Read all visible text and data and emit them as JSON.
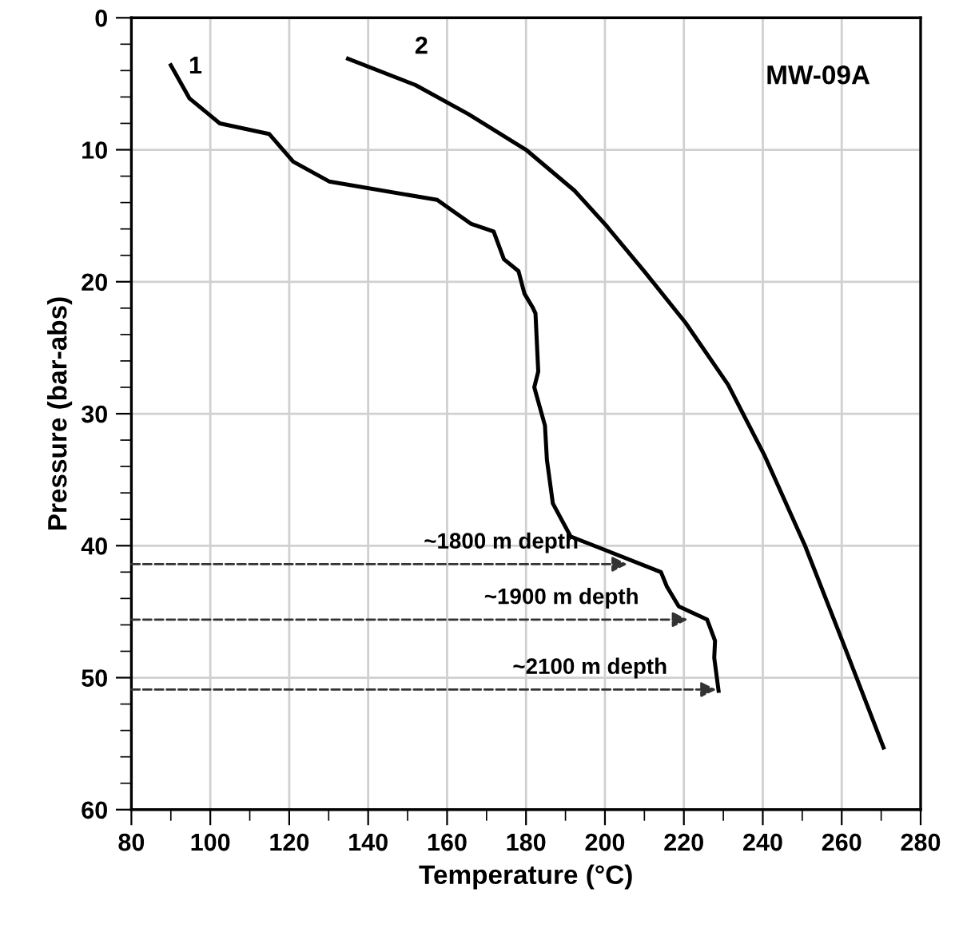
{
  "chart_data": {
    "type": "line",
    "xlabel": "Temperature (°C)",
    "ylabel": "Pressure (bar-abs)",
    "xlim": [
      80,
      280
    ],
    "ylim": [
      60,
      0
    ],
    "xticks": [
      80,
      {
        "value": 90,
        "label": null
      },
      100,
      {
        "value": 110,
        "label": null
      },
      120,
      {
        "value": 130,
        "label": null
      },
      140,
      {
        "value": 150,
        "label": null
      },
      160,
      {
        "value": 170,
        "label": null
      },
      180,
      {
        "value": 190,
        "label": null
      },
      200,
      {
        "value": 210,
        "label": null
      },
      220,
      {
        "value": 230,
        "label": null
      },
      240,
      {
        "value": 250,
        "label": null
      },
      260,
      {
        "value": 270,
        "label": null
      },
      280
    ],
    "yticks": [
      0,
      {
        "value": 2,
        "label": null
      },
      {
        "value": 4,
        "label": null
      },
      {
        "value": 6,
        "label": null
      },
      {
        "value": 8,
        "label": null
      },
      10,
      {
        "value": 12,
        "label": null
      },
      {
        "value": 14,
        "label": null
      },
      {
        "value": 16,
        "label": null
      },
      {
        "value": 18,
        "label": null
      },
      20,
      {
        "value": 22,
        "label": null
      },
      {
        "value": 24,
        "label": null
      },
      {
        "value": 26,
        "label": null
      },
      {
        "value": 28,
        "label": null
      },
      30,
      {
        "value": 32,
        "label": null
      },
      {
        "value": 34,
        "label": null
      },
      {
        "value": 36,
        "label": null
      },
      {
        "value": 38,
        "label": null
      },
      40,
      {
        "value": 42,
        "label": null
      },
      {
        "value": 44,
        "label": null
      },
      {
        "value": 46,
        "label": null
      },
      {
        "value": 48,
        "label": null
      },
      50,
      {
        "value": 52,
        "label": null
      },
      {
        "value": 54,
        "label": null
      },
      {
        "value": 56,
        "label": null
      },
      {
        "value": 58,
        "label": null
      },
      60
    ],
    "grid": true,
    "legend": false,
    "marker": "none",
    "line_style": "solid",
    "series": [
      {
        "name": "1",
        "color": "#000000",
        "x": [
          90.0,
          94.7,
          102.4,
          114.9,
          121.0,
          130.1,
          157.5,
          166.0,
          171.8,
          174.4,
          178.1,
          179.6,
          181.6,
          182.4,
          183.1,
          182.1,
          184.8,
          185.3,
          186.8,
          191.3,
          214.2,
          215.7,
          218.7,
          225.9,
          227.9,
          227.7,
          228.8
        ],
        "values": [
          3.6,
          6.1,
          8.0,
          8.8,
          10.9,
          12.4,
          13.8,
          15.6,
          16.2,
          18.3,
          19.2,
          20.9,
          21.9,
          22.4,
          26.8,
          28.0,
          30.9,
          33.5,
          36.8,
          39.3,
          42.0,
          43.1,
          44.6,
          45.6,
          47.2,
          48.5,
          51.0
        ]
      },
      {
        "name": "2",
        "color": "#000000",
        "x": [
          134.9,
          152.0,
          165.4,
          180.0,
          192.3,
          200.2,
          210.2,
          220.4,
          231.2,
          240.5,
          250.7,
          260.4,
          270.6
        ],
        "values": [
          3.1,
          5.1,
          7.3,
          10.0,
          13.1,
          15.7,
          19.3,
          23.1,
          27.8,
          33.2,
          40.0,
          47.4,
          55.3
        ]
      }
    ],
    "annotations": [
      "MW-09A",
      {
        "text": "~1800 m depth",
        "x": 205.7,
        "y": 41.4
      },
      {
        "text": "~1900 m depth",
        "x": 221.0,
        "y": 45.6
      },
      {
        "text": "~2100 m depth",
        "x": 228.2,
        "y": 50.9
      }
    ]
  }
}
